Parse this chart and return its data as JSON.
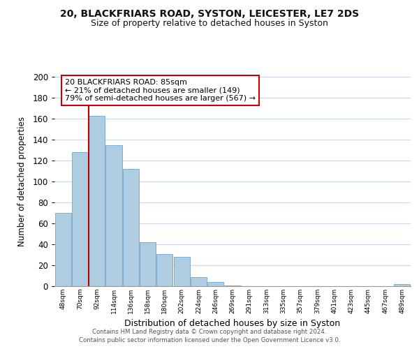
{
  "title_line1": "20, BLACKFRIARS ROAD, SYSTON, LEICESTER, LE7 2DS",
  "title_line2": "Size of property relative to detached houses in Syston",
  "xlabel": "Distribution of detached houses by size in Syston",
  "ylabel": "Number of detached properties",
  "bar_labels": [
    "48sqm",
    "70sqm",
    "92sqm",
    "114sqm",
    "136sqm",
    "158sqm",
    "180sqm",
    "202sqm",
    "224sqm",
    "246sqm",
    "269sqm",
    "291sqm",
    "313sqm",
    "335sqm",
    "357sqm",
    "379sqm",
    "401sqm",
    "423sqm",
    "445sqm",
    "467sqm",
    "489sqm"
  ],
  "bar_heights": [
    70,
    128,
    163,
    135,
    112,
    42,
    31,
    28,
    9,
    4,
    1,
    0,
    0,
    0,
    0,
    0,
    0,
    0,
    0,
    0,
    2
  ],
  "bar_color": "#aecde0",
  "bar_edge_color": "#7bafd4",
  "bar_width": 0.95,
  "ylim": [
    0,
    200
  ],
  "yticks": [
    0,
    20,
    40,
    60,
    80,
    100,
    120,
    140,
    160,
    180,
    200
  ],
  "red_line_x": 2,
  "red_line_color": "#bb0000",
  "annotation_title": "20 BLACKFRIARS ROAD: 85sqm",
  "annotation_line1": "← 21% of detached houses are smaller (149)",
  "annotation_line2": "79% of semi-detached houses are larger (567) →",
  "annotation_box_edge": "#cc0000",
  "footer_line1": "Contains HM Land Registry data © Crown copyright and database right 2024.",
  "footer_line2": "Contains public sector information licensed under the Open Government Licence v3.0.",
  "background_color": "#ffffff",
  "grid_color": "#c8d8e8"
}
